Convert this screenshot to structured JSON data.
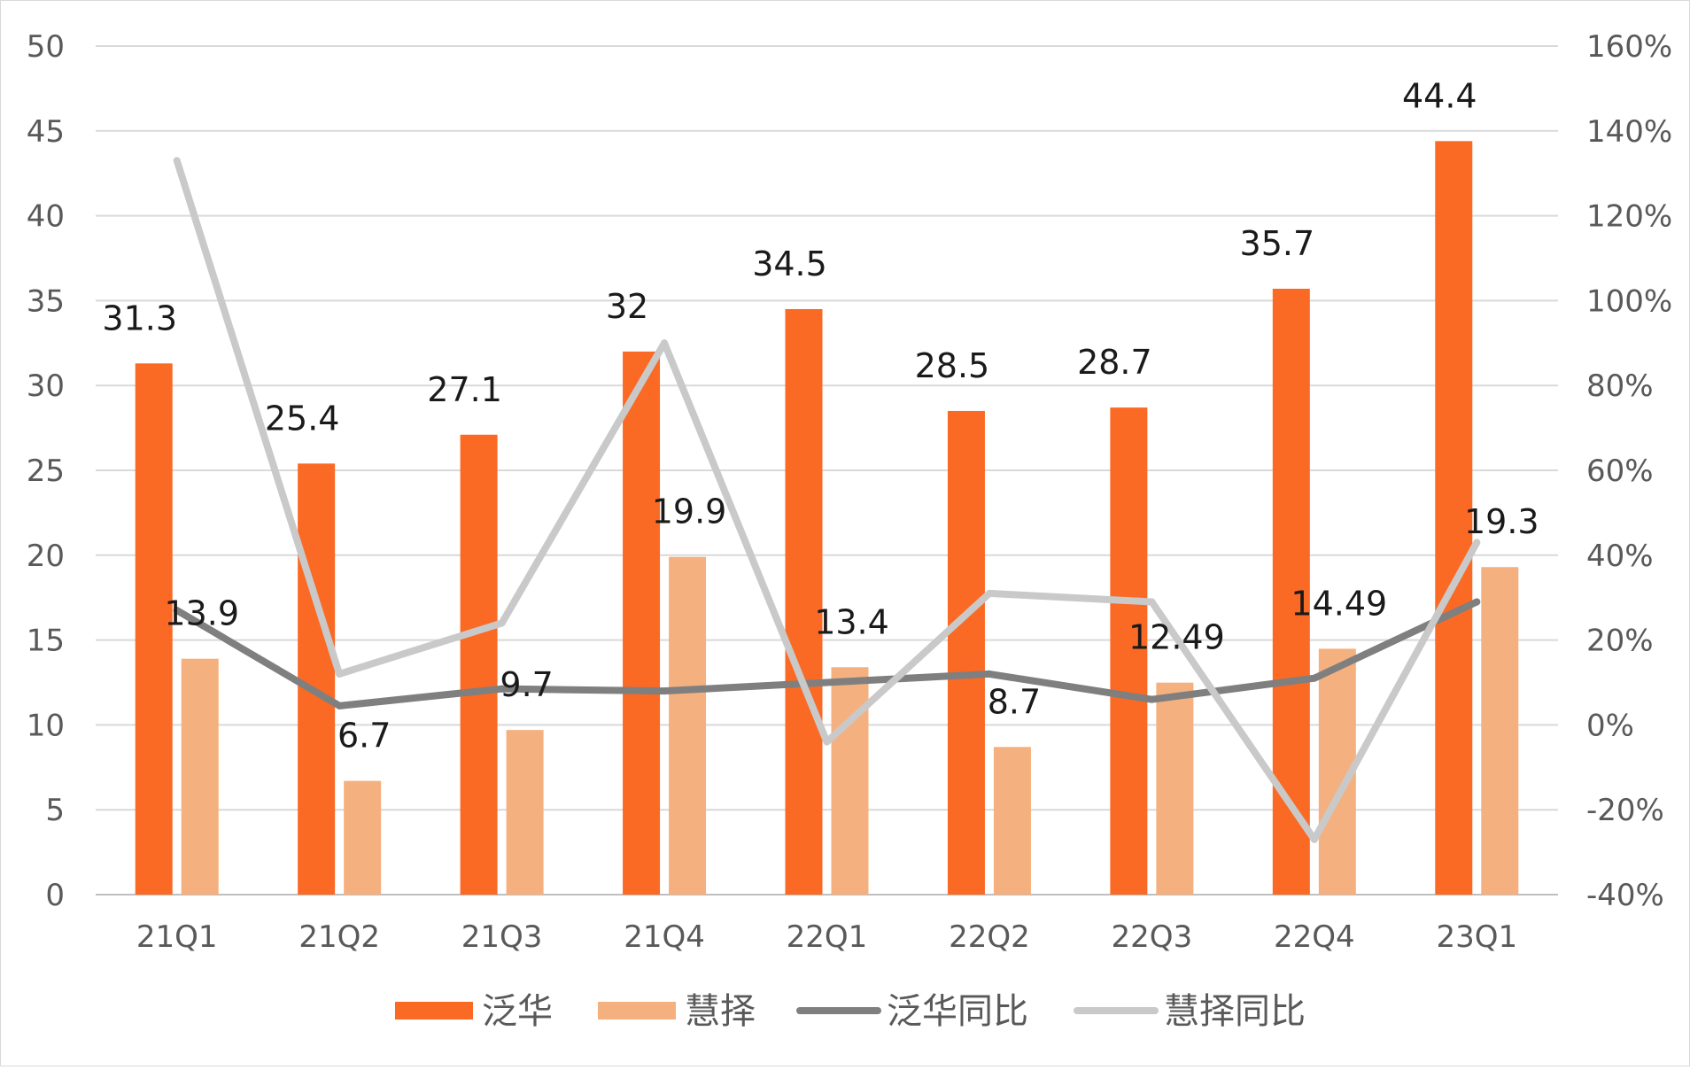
{
  "chart_data": {
    "type": "bar",
    "title": "",
    "xlabel": "",
    "ylabel": "",
    "categories": [
      "21Q1",
      "21Q2",
      "21Q3",
      "21Q4",
      "22Q1",
      "22Q2",
      "22Q3",
      "22Q4",
      "23Q1"
    ],
    "ylim": [
      0,
      50
    ],
    "y2lim": [
      -40,
      160
    ],
    "y_ticks": [
      "0",
      "5",
      "10",
      "15",
      "20",
      "25",
      "30",
      "35",
      "40",
      "45",
      "50"
    ],
    "y2_ticks": [
      "-40%",
      "-20%",
      "0%",
      "20%",
      "40%",
      "60%",
      "80%",
      "100%",
      "120%",
      "140%",
      "160%"
    ],
    "grid": true,
    "legend_position": "bottom",
    "series": [
      {
        "name": "泛华",
        "type": "bar",
        "axis": "left",
        "color": "#fa6a24",
        "values": [
          31.3,
          25.4,
          27.1,
          32,
          34.5,
          28.5,
          28.7,
          35.7,
          44.4
        ],
        "labels": [
          "31.3",
          "25.4",
          "27.1",
          "32",
          "34.5",
          "28.5",
          "28.7",
          "35.7",
          "44.4"
        ]
      },
      {
        "name": "慧择",
        "type": "bar",
        "axis": "left",
        "color": "#f5b07f",
        "values": [
          13.9,
          6.7,
          9.7,
          19.9,
          13.4,
          8.7,
          12.49,
          14.49,
          19.3
        ],
        "labels": [
          "13.9",
          "6.7",
          "9.7",
          "19.9",
          "13.4",
          "8.7",
          "12.49",
          "14.49",
          "19.3"
        ]
      },
      {
        "name": "泛华同比",
        "type": "line",
        "axis": "right",
        "color": "#7f7f7f",
        "values": [
          27,
          4.5,
          8.5,
          8,
          10,
          12,
          6,
          11,
          29
        ]
      },
      {
        "name": "慧择同比",
        "type": "line",
        "axis": "right",
        "color": "#c9c9c9",
        "values": [
          133,
          12,
          24,
          90,
          -4,
          31,
          29,
          -27,
          43
        ]
      }
    ]
  }
}
